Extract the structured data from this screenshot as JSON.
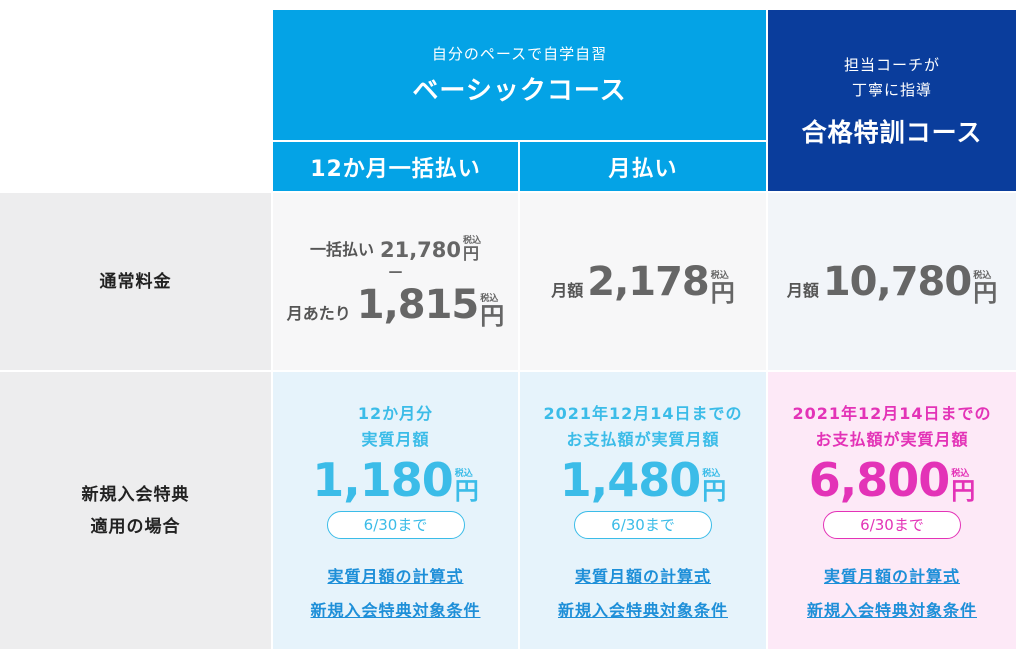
{
  "header": {
    "basic": {
      "subtitle": "自分のペースで自学自習",
      "title": "ベーシックコース"
    },
    "annual": "12か月一括払い",
    "monthly": "月払い",
    "premium": {
      "subtitle1": "担当コーチが",
      "subtitle2": "丁寧に指導",
      "title": "合格特訓コース"
    }
  },
  "rows": {
    "normal_label": "通常料金",
    "benefit_label1": "新規入会特典",
    "benefit_label2": "適用の場合"
  },
  "normal": {
    "annual": {
      "lump_label": "一括払い",
      "lump_price": "21,780",
      "separator": "—",
      "per_month_label": "月あたり",
      "per_month_price": "1,815"
    },
    "monthly": {
      "label": "月額",
      "price": "2,178"
    },
    "premium": {
      "label": "月額",
      "price": "10,780"
    },
    "tax": "税込",
    "yen": "円"
  },
  "benefit": {
    "annual": {
      "desc1": "12か月分",
      "desc2": "実質月額",
      "price": "1,180",
      "deadline": "6/30まで"
    },
    "monthly": {
      "desc1": "2021年12月14日までの",
      "desc2": "お支払額が実質月額",
      "price": "1,480",
      "deadline": "6/30まで"
    },
    "premium": {
      "desc1": "2021年12月14日までの",
      "desc2": "お支払額が実質月額",
      "price": "6,800",
      "deadline": "6/30まで"
    },
    "link_formula": "実質月額の計算式",
    "link_conditions": "新規入会特典対象条件"
  },
  "colors": {
    "basic": "#04a3e6",
    "premium": "#0a3d9c",
    "accent_blue": "#3bbce8",
    "accent_pink": "#e333b7"
  }
}
